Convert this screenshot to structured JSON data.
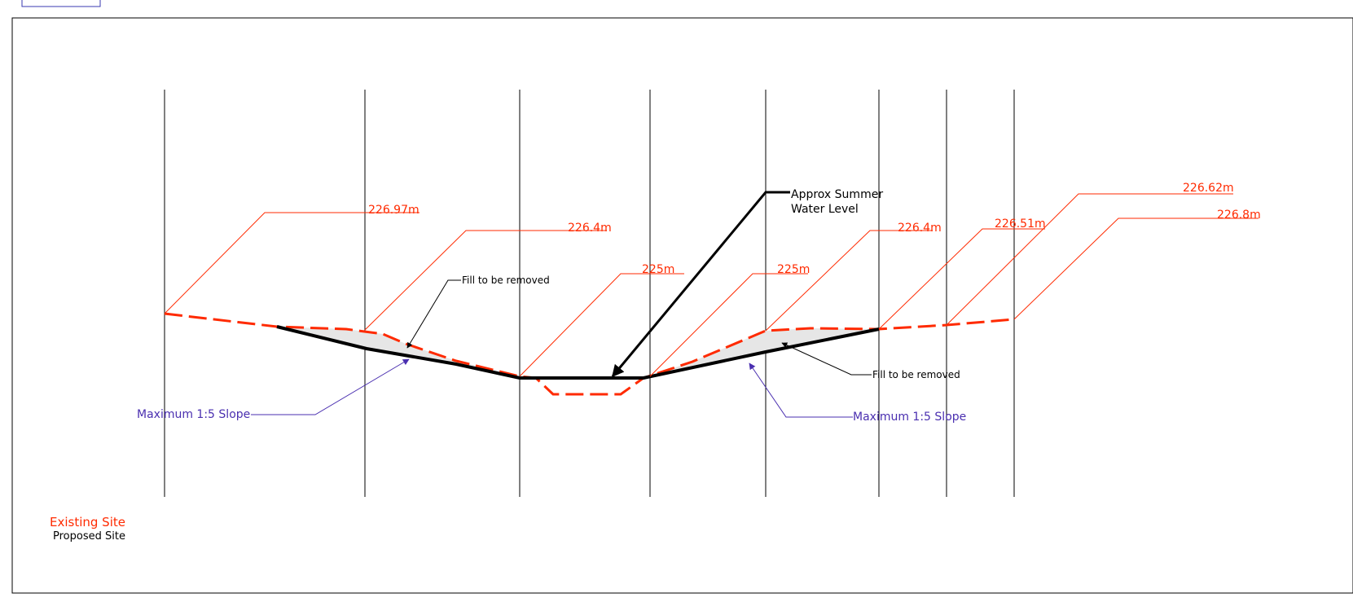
{
  "colors": {
    "existing": "#ff2a00",
    "proposed": "#000000",
    "slope_note": "#4a2fb0",
    "fill_area": "#e6e6e6"
  },
  "levels": {
    "left_top": "226.97m",
    "left_mid": "226.4m",
    "left_bank": "225m",
    "right_bank": "225m",
    "right_mid": "226.4m",
    "right_a": "226.51m",
    "right_b": "226.62m",
    "right_c": "226.8m"
  },
  "notes": {
    "water_level_line1": "Approx Summer",
    "water_level_line2": "Water Level",
    "fill_left": "Fill to be removed",
    "fill_right": "Fill to be removed",
    "slope_left": "Maximum 1:5 Slope",
    "slope_right": "Maximum 1:5 Slope"
  },
  "legend": {
    "existing": "Existing Site",
    "proposed": "Proposed Site"
  }
}
